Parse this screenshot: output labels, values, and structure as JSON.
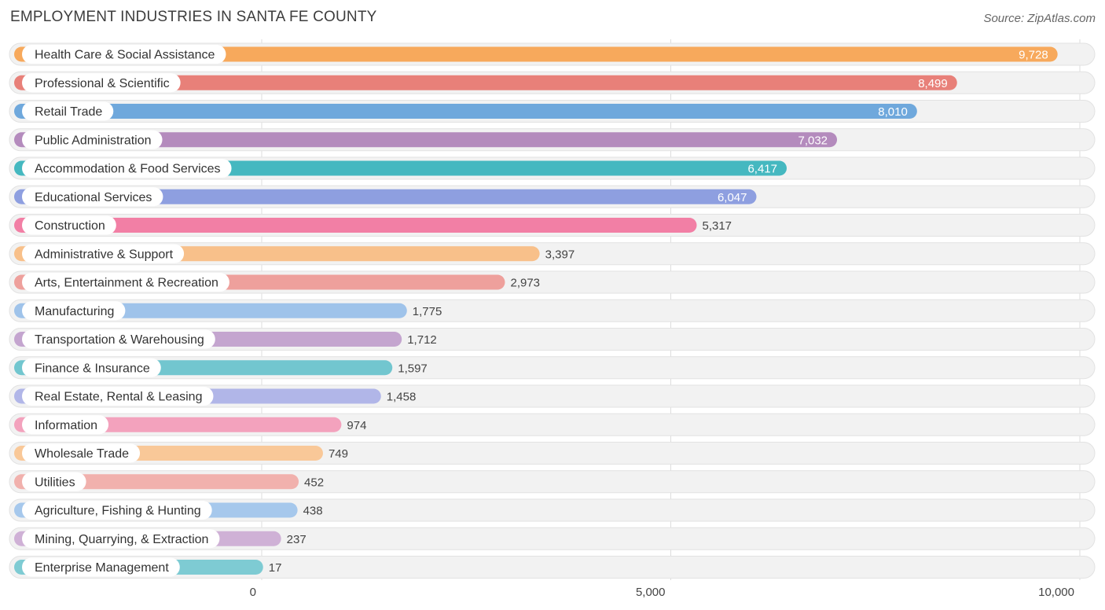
{
  "chart_data": {
    "type": "bar",
    "orientation": "horizontal",
    "title": "EMPLOYMENT INDUSTRIES IN SANTA FE COUNTY",
    "source": "Source: ZipAtlas.com",
    "categories": [
      "Health Care & Social Assistance",
      "Professional & Scientific",
      "Retail Trade",
      "Public Administration",
      "Accommodation & Food Services",
      "Educational Services",
      "Construction",
      "Administrative & Support",
      "Arts, Entertainment & Recreation",
      "Manufacturing",
      "Transportation & Warehousing",
      "Finance & Insurance",
      "Real Estate, Rental & Leasing",
      "Information",
      "Wholesale Trade",
      "Utilities",
      "Agriculture, Fishing & Hunting",
      "Mining, Quarrying, & Extraction",
      "Enterprise Management"
    ],
    "values": [
      9728,
      8499,
      8010,
      7032,
      6417,
      6047,
      5317,
      3397,
      2973,
      1775,
      1712,
      1597,
      1458,
      974,
      749,
      452,
      438,
      237,
      17
    ],
    "value_labels": [
      "9,728",
      "8,499",
      "8,010",
      "7,032",
      "6,417",
      "6,047",
      "5,317",
      "3,397",
      "2,973",
      "1,775",
      "1,712",
      "1,597",
      "1,458",
      "974",
      "749",
      "452",
      "438",
      "237",
      "17"
    ],
    "colors": [
      "#f7a95c",
      "#e88079",
      "#6fa8dc",
      "#b48bbd",
      "#45b8c0",
      "#8e9fe0",
      "#f27fa5",
      "#f8c08a",
      "#eea09c",
      "#9fc3ea",
      "#c4a5cf",
      "#72c6cf",
      "#b1b6e8",
      "#f3a2bd",
      "#f9c898",
      "#f1b1ad",
      "#a6c8ec",
      "#cfb1d6",
      "#7ecbd3"
    ],
    "xlim": [
      0,
      10000
    ],
    "xticks": [
      0,
      5000,
      10000
    ],
    "xtick_labels": [
      "0",
      "5,000",
      "10,000"
    ],
    "inside_label_min": 6000,
    "grid": true
  }
}
